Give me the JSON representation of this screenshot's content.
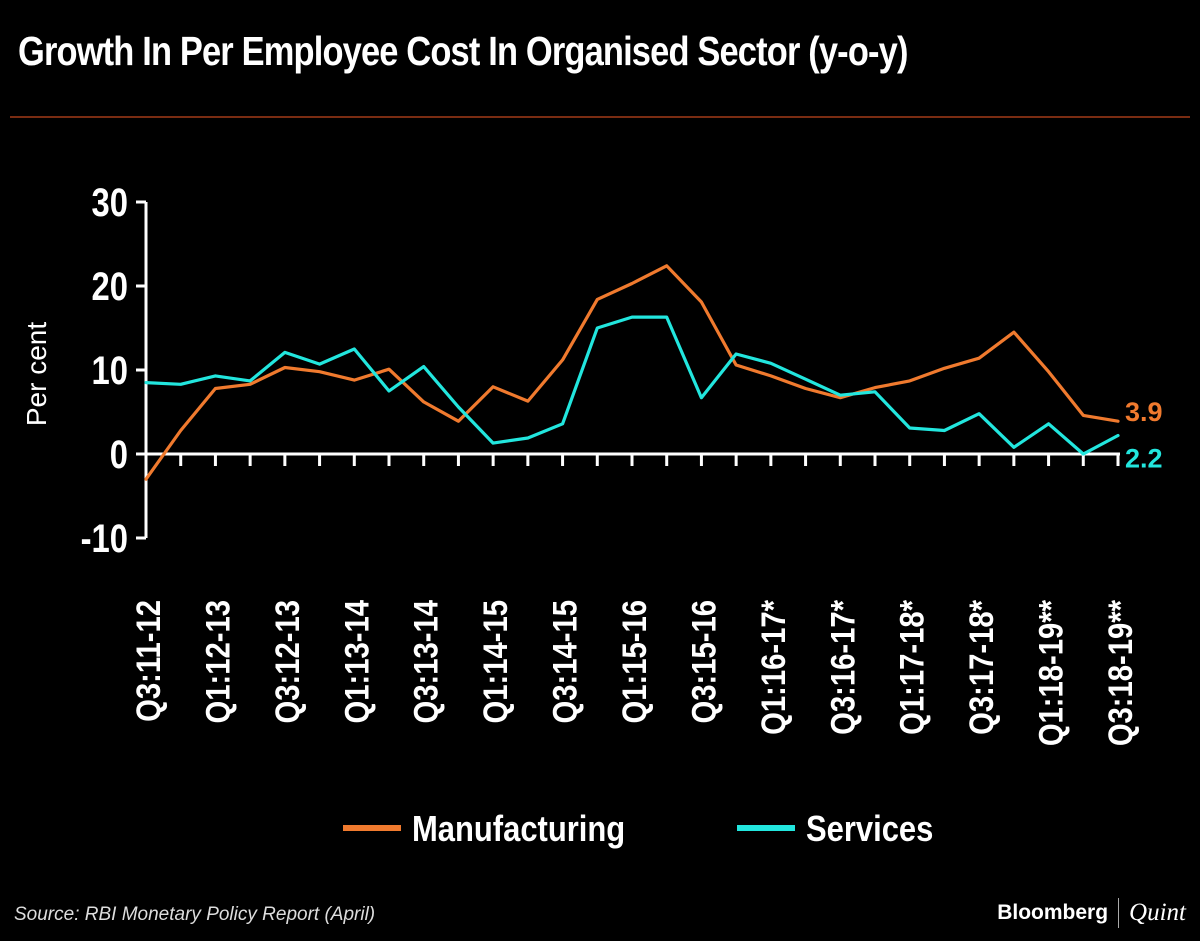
{
  "title": "Growth In Per Employee Cost In Organised Sector (y-o-y)",
  "source": "Source: RBI Monetary Policy Report (April)",
  "brand": {
    "name": "Bloomberg",
    "partner": "Quint"
  },
  "colors": {
    "manufacturing": "#f07a2e",
    "services": "#22e6de",
    "background": "#000000",
    "axis": "#ffffff",
    "rule": "#7a2c12"
  },
  "chart_data": {
    "type": "line",
    "title": "Growth In Per Employee Cost In Organised Sector (y-o-y)",
    "xlabel": "",
    "ylabel": "Per cent",
    "ylim": [
      -10,
      30
    ],
    "yticks": [
      "30",
      "20",
      "10",
      "0",
      "-10"
    ],
    "x_tick_labels": [
      "Q3:11-12",
      "Q1:12-13",
      "Q3:12-13",
      "Q1:13-14",
      "Q3:13-14",
      "Q1:14-15",
      "Q3:14-15",
      "Q1:15-16",
      "Q3:15-16",
      "Q1:16-17*",
      "Q3:16-17*",
      "Q1:17-18*",
      "Q3:17-18*",
      "Q1:18-19**",
      "Q3:18-19**"
    ],
    "x": [
      0,
      1,
      2,
      3,
      4,
      5,
      6,
      7,
      8,
      9,
      10,
      11,
      12,
      13,
      14,
      15,
      16,
      17,
      18,
      19,
      20,
      21,
      22,
      23,
      24,
      25,
      26,
      27,
      28
    ],
    "series": [
      {
        "name": "Manufacturing",
        "end_label": "3.9",
        "values": [
          -3.0,
          2.8,
          7.8,
          8.3,
          10.3,
          9.8,
          8.8,
          10.1,
          6.2,
          3.9,
          8.0,
          6.3,
          11.2,
          18.4,
          20.3,
          22.4,
          18.1,
          10.6,
          9.3,
          7.8,
          6.7,
          7.9,
          8.7,
          10.2,
          11.4,
          14.5,
          9.8,
          4.6,
          3.9
        ]
      },
      {
        "name": "Services",
        "end_label": "2.2",
        "values": [
          8.5,
          8.3,
          9.3,
          8.7,
          12.1,
          10.7,
          12.5,
          7.5,
          10.4,
          5.6,
          1.3,
          1.9,
          3.6,
          15.0,
          16.3,
          16.3,
          6.7,
          11.9,
          10.8,
          8.9,
          7.0,
          7.4,
          3.1,
          2.8,
          4.8,
          0.8,
          3.6,
          0.0,
          2.2
        ]
      }
    ],
    "legend": [
      "Manufacturing",
      "Services"
    ],
    "legend_position": "bottom",
    "grid": false
  }
}
